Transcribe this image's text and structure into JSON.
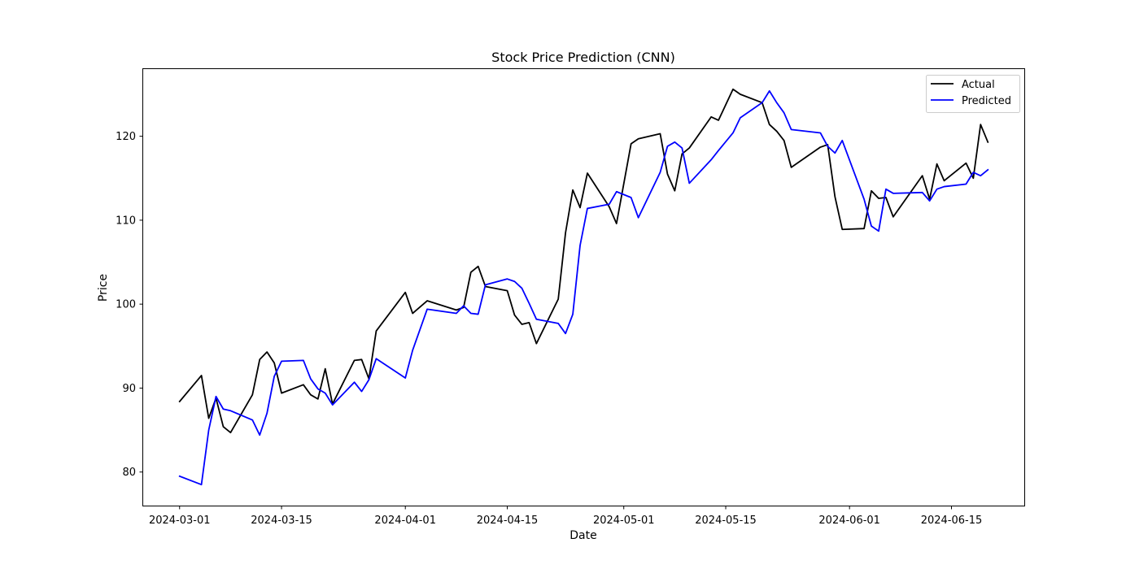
{
  "chart_data": {
    "type": "line",
    "title": "Stock Price Prediction (CNN)",
    "xlabel": "Date",
    "ylabel": "Price",
    "xlim": [
      "2024-02-25",
      "2024-06-25"
    ],
    "ylim": [
      76,
      128
    ],
    "x_ticks": [
      "2024-03-01",
      "2024-03-15",
      "2024-04-01",
      "2024-04-15",
      "2024-05-01",
      "2024-05-15",
      "2024-06-01",
      "2024-06-15"
    ],
    "y_ticks": [
      80,
      90,
      100,
      110,
      120
    ],
    "grid": false,
    "legend_position": "top-right",
    "series": [
      {
        "name": "Actual",
        "color": "#000000",
        "points": [
          [
            "2024-03-01",
            88.4
          ],
          [
            "2024-03-04",
            91.5
          ],
          [
            "2024-03-05",
            86.4
          ],
          [
            "2024-03-06",
            88.8
          ],
          [
            "2024-03-07",
            85.4
          ],
          [
            "2024-03-08",
            84.7
          ],
          [
            "2024-03-11",
            89.2
          ],
          [
            "2024-03-12",
            93.4
          ],
          [
            "2024-03-13",
            94.3
          ],
          [
            "2024-03-14",
            93.0
          ],
          [
            "2024-03-15",
            89.4
          ],
          [
            "2024-03-18",
            90.4
          ],
          [
            "2024-03-19",
            89.2
          ],
          [
            "2024-03-20",
            88.7
          ],
          [
            "2024-03-21",
            92.3
          ],
          [
            "2024-03-22",
            88.1
          ],
          [
            "2024-03-25",
            93.3
          ],
          [
            "2024-03-26",
            93.4
          ],
          [
            "2024-03-27",
            91.1
          ],
          [
            "2024-03-28",
            96.8
          ],
          [
            "2024-04-01",
            101.4
          ],
          [
            "2024-04-02",
            98.9
          ],
          [
            "2024-04-04",
            100.4
          ],
          [
            "2024-04-08",
            99.3
          ],
          [
            "2024-04-09",
            99.6
          ],
          [
            "2024-04-10",
            103.8
          ],
          [
            "2024-04-11",
            104.5
          ],
          [
            "2024-04-12",
            102.1
          ],
          [
            "2024-04-15",
            101.6
          ],
          [
            "2024-04-16",
            98.7
          ],
          [
            "2024-04-17",
            97.6
          ],
          [
            "2024-04-18",
            97.8
          ],
          [
            "2024-04-19",
            95.3
          ],
          [
            "2024-04-22",
            100.6
          ],
          [
            "2024-04-23",
            108.5
          ],
          [
            "2024-04-24",
            113.6
          ],
          [
            "2024-04-25",
            111.5
          ],
          [
            "2024-04-26",
            115.6
          ],
          [
            "2024-04-29",
            111.6
          ],
          [
            "2024-04-30",
            109.6
          ],
          [
            "2024-05-02",
            119.1
          ],
          [
            "2024-05-03",
            119.7
          ],
          [
            "2024-05-06",
            120.3
          ],
          [
            "2024-05-07",
            115.5
          ],
          [
            "2024-05-08",
            113.5
          ],
          [
            "2024-05-09",
            117.9
          ],
          [
            "2024-05-10",
            118.6
          ],
          [
            "2024-05-13",
            122.3
          ],
          [
            "2024-05-14",
            121.9
          ],
          [
            "2024-05-16",
            125.6
          ],
          [
            "2024-05-17",
            125.0
          ],
          [
            "2024-05-20",
            124.0
          ],
          [
            "2024-05-21",
            121.4
          ],
          [
            "2024-05-22",
            120.6
          ],
          [
            "2024-05-23",
            119.5
          ],
          [
            "2024-05-24",
            116.3
          ],
          [
            "2024-05-28",
            118.7
          ],
          [
            "2024-05-29",
            119.0
          ],
          [
            "2024-05-30",
            112.8
          ],
          [
            "2024-05-31",
            108.9
          ],
          [
            "2024-06-03",
            109.0
          ],
          [
            "2024-06-04",
            113.5
          ],
          [
            "2024-06-05",
            112.6
          ],
          [
            "2024-06-06",
            112.7
          ],
          [
            "2024-06-07",
            110.4
          ],
          [
            "2024-06-11",
            115.3
          ],
          [
            "2024-06-12",
            112.5
          ],
          [
            "2024-06-13",
            116.7
          ],
          [
            "2024-06-14",
            114.7
          ],
          [
            "2024-06-17",
            116.8
          ],
          [
            "2024-06-18",
            115.0
          ],
          [
            "2024-06-19",
            121.4
          ],
          [
            "2024-06-20",
            119.3
          ]
        ]
      },
      {
        "name": "Predicted",
        "color": "#0000ff",
        "points": [
          [
            "2024-03-01",
            79.5
          ],
          [
            "2024-03-04",
            78.5
          ],
          [
            "2024-03-05",
            85.0
          ],
          [
            "2024-03-06",
            89.0
          ],
          [
            "2024-03-07",
            87.5
          ],
          [
            "2024-03-08",
            87.3
          ],
          [
            "2024-03-11",
            86.2
          ],
          [
            "2024-03-12",
            84.4
          ],
          [
            "2024-03-13",
            87.0
          ],
          [
            "2024-03-14",
            91.4
          ],
          [
            "2024-03-15",
            93.2
          ],
          [
            "2024-03-18",
            93.3
          ],
          [
            "2024-03-19",
            91.1
          ],
          [
            "2024-03-20",
            89.9
          ],
          [
            "2024-03-21",
            89.4
          ],
          [
            "2024-03-22",
            88.0
          ],
          [
            "2024-03-25",
            90.7
          ],
          [
            "2024-03-26",
            89.6
          ],
          [
            "2024-03-27",
            91.0
          ],
          [
            "2024-03-28",
            93.5
          ],
          [
            "2024-04-01",
            91.2
          ],
          [
            "2024-04-02",
            94.5
          ],
          [
            "2024-04-04",
            99.4
          ],
          [
            "2024-04-08",
            98.9
          ],
          [
            "2024-04-09",
            99.8
          ],
          [
            "2024-04-10",
            98.9
          ],
          [
            "2024-04-11",
            98.8
          ],
          [
            "2024-04-12",
            102.3
          ],
          [
            "2024-04-15",
            103.0
          ],
          [
            "2024-04-16",
            102.7
          ],
          [
            "2024-04-17",
            101.9
          ],
          [
            "2024-04-18",
            100.1
          ],
          [
            "2024-04-19",
            98.2
          ],
          [
            "2024-04-22",
            97.7
          ],
          [
            "2024-04-23",
            96.5
          ],
          [
            "2024-04-24",
            98.8
          ],
          [
            "2024-04-25",
            107.0
          ],
          [
            "2024-04-26",
            111.4
          ],
          [
            "2024-04-29",
            111.9
          ],
          [
            "2024-04-30",
            113.4
          ],
          [
            "2024-05-02",
            112.7
          ],
          [
            "2024-05-03",
            110.3
          ],
          [
            "2024-05-06",
            115.7
          ],
          [
            "2024-05-07",
            118.8
          ],
          [
            "2024-05-08",
            119.3
          ],
          [
            "2024-05-09",
            118.6
          ],
          [
            "2024-05-10",
            114.4
          ],
          [
            "2024-05-13",
            117.2
          ],
          [
            "2024-05-14",
            118.3
          ],
          [
            "2024-05-16",
            120.4
          ],
          [
            "2024-05-17",
            122.2
          ],
          [
            "2024-05-20",
            124.0
          ],
          [
            "2024-05-21",
            125.4
          ],
          [
            "2024-05-22",
            124.0
          ],
          [
            "2024-05-23",
            122.8
          ],
          [
            "2024-05-24",
            120.8
          ],
          [
            "2024-05-28",
            120.4
          ],
          [
            "2024-05-29",
            118.8
          ],
          [
            "2024-05-30",
            118.0
          ],
          [
            "2024-05-31",
            119.5
          ],
          [
            "2024-06-03",
            112.5
          ],
          [
            "2024-06-04",
            109.3
          ],
          [
            "2024-06-05",
            108.7
          ],
          [
            "2024-06-06",
            113.7
          ],
          [
            "2024-06-07",
            113.2
          ],
          [
            "2024-06-11",
            113.3
          ],
          [
            "2024-06-12",
            112.3
          ],
          [
            "2024-06-13",
            113.7
          ],
          [
            "2024-06-14",
            114.0
          ],
          [
            "2024-06-17",
            114.3
          ],
          [
            "2024-06-18",
            115.7
          ],
          [
            "2024-06-19",
            115.3
          ],
          [
            "2024-06-20",
            116.0
          ]
        ]
      }
    ]
  }
}
